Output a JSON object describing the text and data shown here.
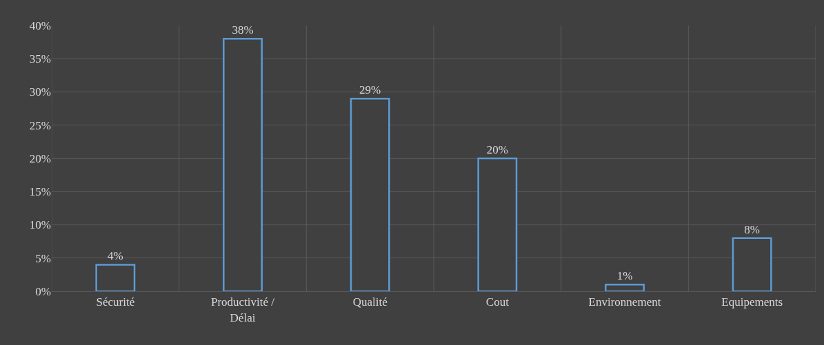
{
  "chart_data": {
    "type": "bar",
    "categories": [
      "Sécurité",
      "Productivité /\nDélai",
      "Qualité",
      "Cout",
      "Environnement",
      "Equipements"
    ],
    "values": [
      4,
      38,
      29,
      20,
      1,
      8
    ],
    "value_labels": [
      "4%",
      "38%",
      "29%",
      "20%",
      "1%",
      "8%"
    ],
    "color": "#5b9bd5",
    "ylim": [
      0,
      40
    ],
    "yticks": [
      {
        "value": 0,
        "label": "0%"
      },
      {
        "value": 5,
        "label": "5%"
      },
      {
        "value": 10,
        "label": "10%"
      },
      {
        "value": 15,
        "label": "15%"
      },
      {
        "value": 20,
        "label": "20%"
      },
      {
        "value": 25,
        "label": "25%"
      },
      {
        "value": 30,
        "label": "30%"
      },
      {
        "value": 35,
        "label": "35%"
      },
      {
        "value": 40,
        "label": "40%"
      }
    ],
    "grid": true
  }
}
